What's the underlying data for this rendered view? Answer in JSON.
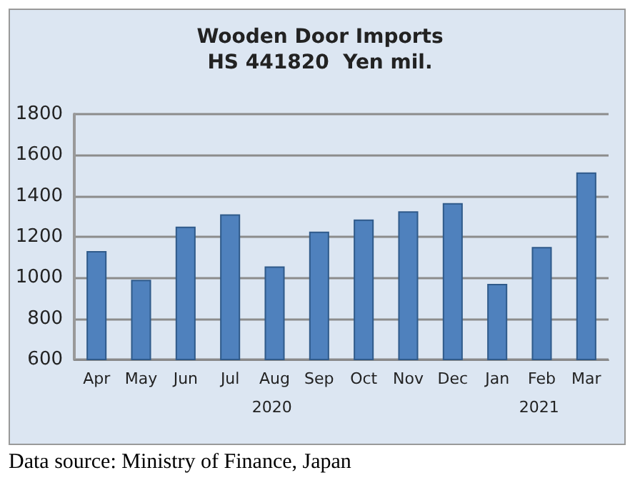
{
  "chart_data": {
    "type": "bar",
    "title": "Wooden Door Imports",
    "subtitle": "HS 441820  Yen mil.",
    "categories": [
      "Apr",
      "May",
      "Jun",
      "Jul",
      "Aug",
      "Sep",
      "Oct",
      "Nov",
      "Dec",
      "Jan",
      "Feb",
      "Mar"
    ],
    "values": [
      1130,
      990,
      1250,
      1310,
      1055,
      1225,
      1285,
      1325,
      1365,
      970,
      1150,
      1515
    ],
    "color": "#4f81bd",
    "ylim": [
      600,
      1800
    ],
    "yticks": [
      600,
      800,
      1000,
      1200,
      1400,
      1600,
      1800
    ],
    "grid": "y",
    "annotations": [
      "2020",
      "2021",
      "Data source: Ministry of Finance, Japan"
    ]
  }
}
